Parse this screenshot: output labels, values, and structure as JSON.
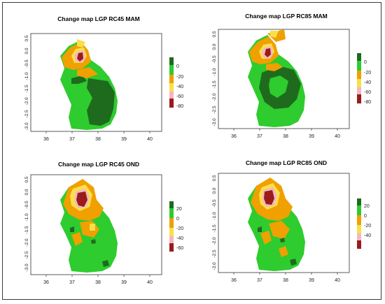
{
  "panels": [
    {
      "title": "Change map LGP RC45 MAM",
      "x_ticks": [
        "36",
        "37",
        "38",
        "39",
        "40"
      ],
      "y_ticks": [
        "0.5",
        "0.0",
        "-0.5",
        "-1.0",
        "-1.5",
        "-2.0",
        "-2.5",
        "-3.0"
      ],
      "legend_ticks": [
        "0",
        "-20",
        "-40",
        "-60",
        "-80"
      ],
      "legend_colors": [
        "#1e6b1e",
        "#2ecc2e",
        "#f0a000",
        "#f7e04a",
        "#f4b6c2",
        "#9b1b1b"
      ]
    },
    {
      "title": "Change map LGP RC85 MAM",
      "x_ticks": [
        "36",
        "37",
        "38",
        "39",
        "40"
      ],
      "y_ticks": [
        "0.5",
        "0.0",
        "-0.5",
        "-1.0",
        "-1.5",
        "-2.0",
        "-2.5",
        "-3.0"
      ],
      "legend_ticks": [
        "0",
        "-20",
        "-40",
        "-60",
        "-80"
      ],
      "legend_colors": [
        "#1e6b1e",
        "#2ecc2e",
        "#f0a000",
        "#f7e04a",
        "#f4b6c2",
        "#9b1b1b"
      ]
    },
    {
      "title": "Change map LGP RC45 OND",
      "x_ticks": [
        "36",
        "37",
        "38",
        "39",
        "40"
      ],
      "y_ticks": [
        "0.5",
        "0.0",
        "-0.5",
        "-1.0",
        "-1.5",
        "-2.0",
        "-2.5",
        "-3.0"
      ],
      "legend_ticks": [
        "20",
        "0",
        "-20",
        "-40",
        "-60"
      ],
      "legend_colors": [
        "#1e6b1e",
        "#2ecc2e",
        "#f0a000",
        "#f7e04a",
        "#f4b6c2",
        "#9b1b1b"
      ]
    },
    {
      "title": "Change map LGP RC85 OND",
      "x_ticks": [
        "36",
        "37",
        "38",
        "39",
        "40"
      ],
      "y_ticks": [
        "0.5",
        "0.0",
        "-0.5",
        "-1.0",
        "-1.5",
        "-2.0",
        "-2.5",
        "-3.0"
      ],
      "legend_ticks": [
        "20",
        "0",
        "-20",
        "-40"
      ],
      "legend_colors": [
        "#1e6b1e",
        "#2ecc2e",
        "#f0a000",
        "#f7e04a",
        "#f4b6c2",
        "#9b1b1b"
      ]
    }
  ]
}
